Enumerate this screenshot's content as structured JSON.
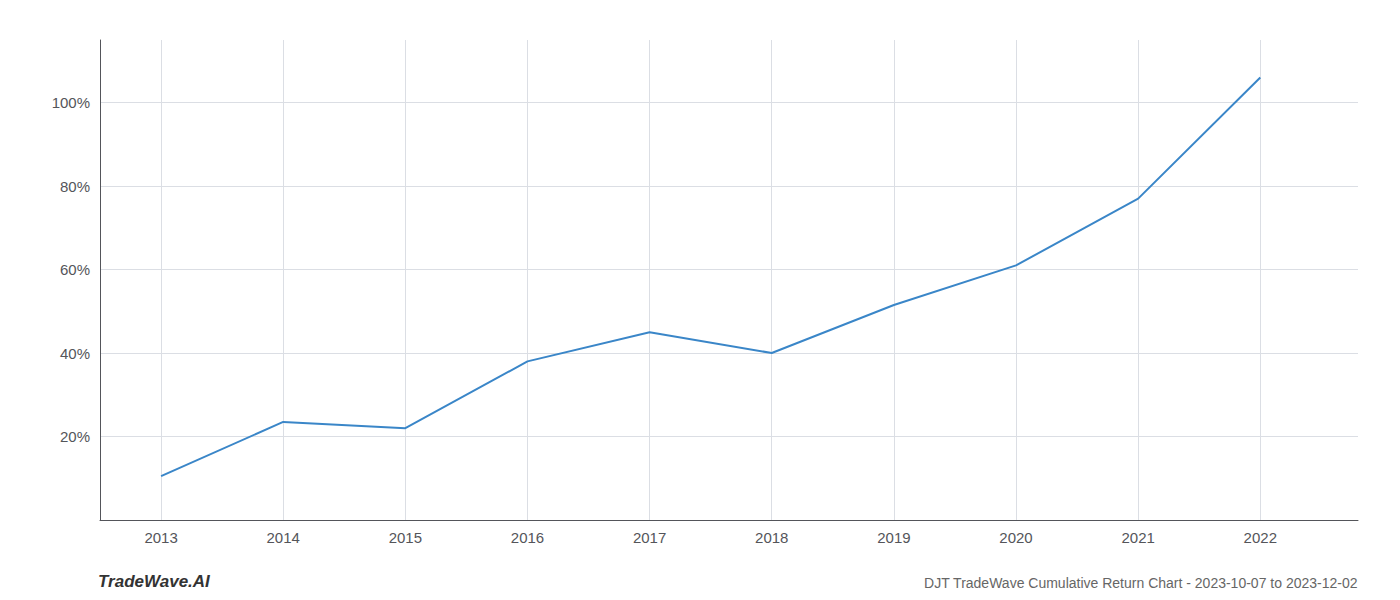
{
  "chart_data": {
    "type": "line",
    "x": [
      2013,
      2014,
      2015,
      2016,
      2017,
      2018,
      2019,
      2020,
      2021,
      2022
    ],
    "values": [
      10.5,
      23.5,
      22.0,
      38.0,
      45.0,
      40.0,
      51.5,
      61.0,
      77.0,
      106.0
    ],
    "color": "#3a86c8",
    "xlim": [
      2012.5,
      2022.8
    ],
    "ylim": [
      0,
      115
    ],
    "xticks": [
      2013,
      2014,
      2015,
      2016,
      2017,
      2018,
      2019,
      2020,
      2021,
      2022
    ],
    "yticks": [
      {
        "value": 20,
        "label": "20%"
      },
      {
        "value": 40,
        "label": "40%"
      },
      {
        "value": 60,
        "label": "60%"
      },
      {
        "value": 80,
        "label": "80%"
      },
      {
        "value": 100,
        "label": "100%"
      }
    ],
    "grid": true,
    "annotations": [
      "TradeWave.AI",
      "DJT TradeWave Cumulative Return Chart - 2023-10-07 to 2023-12-02"
    ]
  }
}
